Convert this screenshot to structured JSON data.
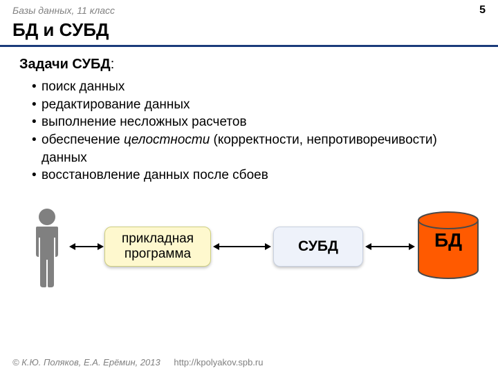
{
  "header": {
    "course": "Базы данных, 11 класс",
    "page_number": "5"
  },
  "title": "БД и СУБД",
  "subtitle": "Задачи СУБД",
  "bullets": [
    "поиск данных",
    "редактирование данных",
    "выполнение несложных расчетов",
    "обеспечение <i>целостности</i> (корректности, непротиворечивости) данных",
    "восстановление данных после сбоев"
  ],
  "diagram": {
    "type": "flowchart",
    "nodes": {
      "person": {
        "kind": "icon",
        "color": "#808080"
      },
      "app": {
        "label": "прикладная программа",
        "bg": "#fef8ce",
        "border": "#cfcf80"
      },
      "subd": {
        "label": "СУБД",
        "bg": "#eef2fa",
        "border": "#c8d0e0"
      },
      "db": {
        "label": "БД",
        "fill": "#ff5a00",
        "stroke": "#4a4a4a"
      }
    },
    "edges": [
      {
        "from": "person",
        "to": "app",
        "bidirectional": true
      },
      {
        "from": "app",
        "to": "subd",
        "bidirectional": true
      },
      {
        "from": "subd",
        "to": "db",
        "bidirectional": true
      }
    ],
    "arrow_color": "#000000"
  },
  "footer": {
    "copyright": "© К.Ю. Поляков, Е.А. Ерёмин, 2013",
    "url": "http://kpolyakov.spb.ru"
  },
  "colors": {
    "title_underline": "#1a3a7a",
    "muted_text": "#808080"
  }
}
